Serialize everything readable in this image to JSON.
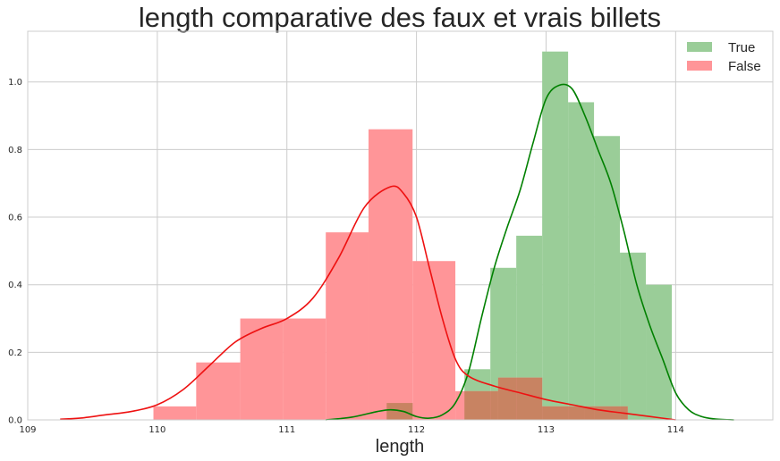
{
  "chart_data": {
    "type": "histogram",
    "title": "length comparative des faux et vrais billets",
    "xlabel": "length",
    "ylabel": "",
    "xlim": [
      109,
      114.75
    ],
    "ylim": [
      0,
      1.15
    ],
    "xticks": [
      "109",
      "110",
      "111",
      "112",
      "113",
      "114"
    ],
    "yticks": [
      "0.0",
      "0.2",
      "0.4",
      "0.6",
      "0.8",
      "1.0"
    ],
    "grid": true,
    "legend_position": "top-right",
    "series": [
      {
        "name": "True",
        "color": "#2ca02c",
        "fill": "#9acd98",
        "kde_color": "#008000",
        "bins": [
          {
            "x0": 111.77,
            "x1": 111.97,
            "height": 0.05
          },
          {
            "x0": 112.37,
            "x1": 112.57,
            "height": 0.15
          },
          {
            "x0": 112.57,
            "x1": 112.77,
            "height": 0.45
          },
          {
            "x0": 112.77,
            "x1": 112.97,
            "height": 0.545
          },
          {
            "x0": 112.97,
            "x1": 113.17,
            "height": 1.09
          },
          {
            "x0": 113.17,
            "x1": 113.37,
            "height": 0.94
          },
          {
            "x0": 113.37,
            "x1": 113.57,
            "height": 0.84
          },
          {
            "x0": 113.57,
            "x1": 113.77,
            "height": 0.495
          },
          {
            "x0": 113.77,
            "x1": 113.97,
            "height": 0.4
          }
        ],
        "kde": {
          "x": [
            111.3,
            111.5,
            111.7,
            111.8,
            111.9,
            112.0,
            112.1,
            112.2,
            112.3,
            112.4,
            112.5,
            112.6,
            112.7,
            112.8,
            112.9,
            113.0,
            113.1,
            113.2,
            113.3,
            113.4,
            113.5,
            113.6,
            113.7,
            113.8,
            113.9,
            114.0,
            114.1,
            114.2,
            114.3,
            114.45
          ],
          "y": [
            0.0,
            0.008,
            0.025,
            0.03,
            0.025,
            0.01,
            0.005,
            0.015,
            0.05,
            0.14,
            0.3,
            0.45,
            0.57,
            0.68,
            0.82,
            0.95,
            0.99,
            0.98,
            0.9,
            0.8,
            0.7,
            0.56,
            0.4,
            0.28,
            0.18,
            0.08,
            0.03,
            0.01,
            0.003,
            0.0
          ]
        }
      },
      {
        "name": "False",
        "color": "#ff0000",
        "fill": "#ff9598",
        "kde_color": "#ee1111",
        "bins": [
          {
            "x0": 109.97,
            "x1": 110.3,
            "height": 0.04
          },
          {
            "x0": 110.3,
            "x1": 110.64,
            "height": 0.17
          },
          {
            "x0": 110.64,
            "x1": 110.97,
            "height": 0.3
          },
          {
            "x0": 110.97,
            "x1": 111.3,
            "height": 0.3
          },
          {
            "x0": 111.3,
            "x1": 111.63,
            "height": 0.555
          },
          {
            "x0": 111.63,
            "x1": 111.97,
            "height": 0.86
          },
          {
            "x0": 111.97,
            "x1": 112.3,
            "height": 0.47
          },
          {
            "x0": 112.3,
            "x1": 112.63,
            "height": 0.085
          },
          {
            "x0": 112.63,
            "x1": 112.97,
            "height": 0.125
          },
          {
            "x0": 112.97,
            "x1": 113.3,
            "height": 0.04
          },
          {
            "x0": 113.3,
            "x1": 113.63,
            "height": 0.04
          }
        ],
        "kde": {
          "x": [
            109.25,
            109.4,
            109.6,
            109.8,
            110.0,
            110.2,
            110.4,
            110.6,
            110.8,
            111.0,
            111.2,
            111.4,
            111.6,
            111.8,
            111.9,
            112.0,
            112.1,
            112.2,
            112.3,
            112.4,
            112.6,
            112.8,
            113.0,
            113.2,
            113.4,
            113.6,
            113.8,
            114.0
          ],
          "y": [
            0.002,
            0.005,
            0.015,
            0.025,
            0.045,
            0.09,
            0.16,
            0.23,
            0.27,
            0.3,
            0.36,
            0.48,
            0.63,
            0.69,
            0.67,
            0.6,
            0.45,
            0.3,
            0.18,
            0.13,
            0.1,
            0.08,
            0.06,
            0.045,
            0.03,
            0.02,
            0.01,
            0.0
          ]
        }
      }
    ],
    "overlap_color": "#c88362"
  }
}
